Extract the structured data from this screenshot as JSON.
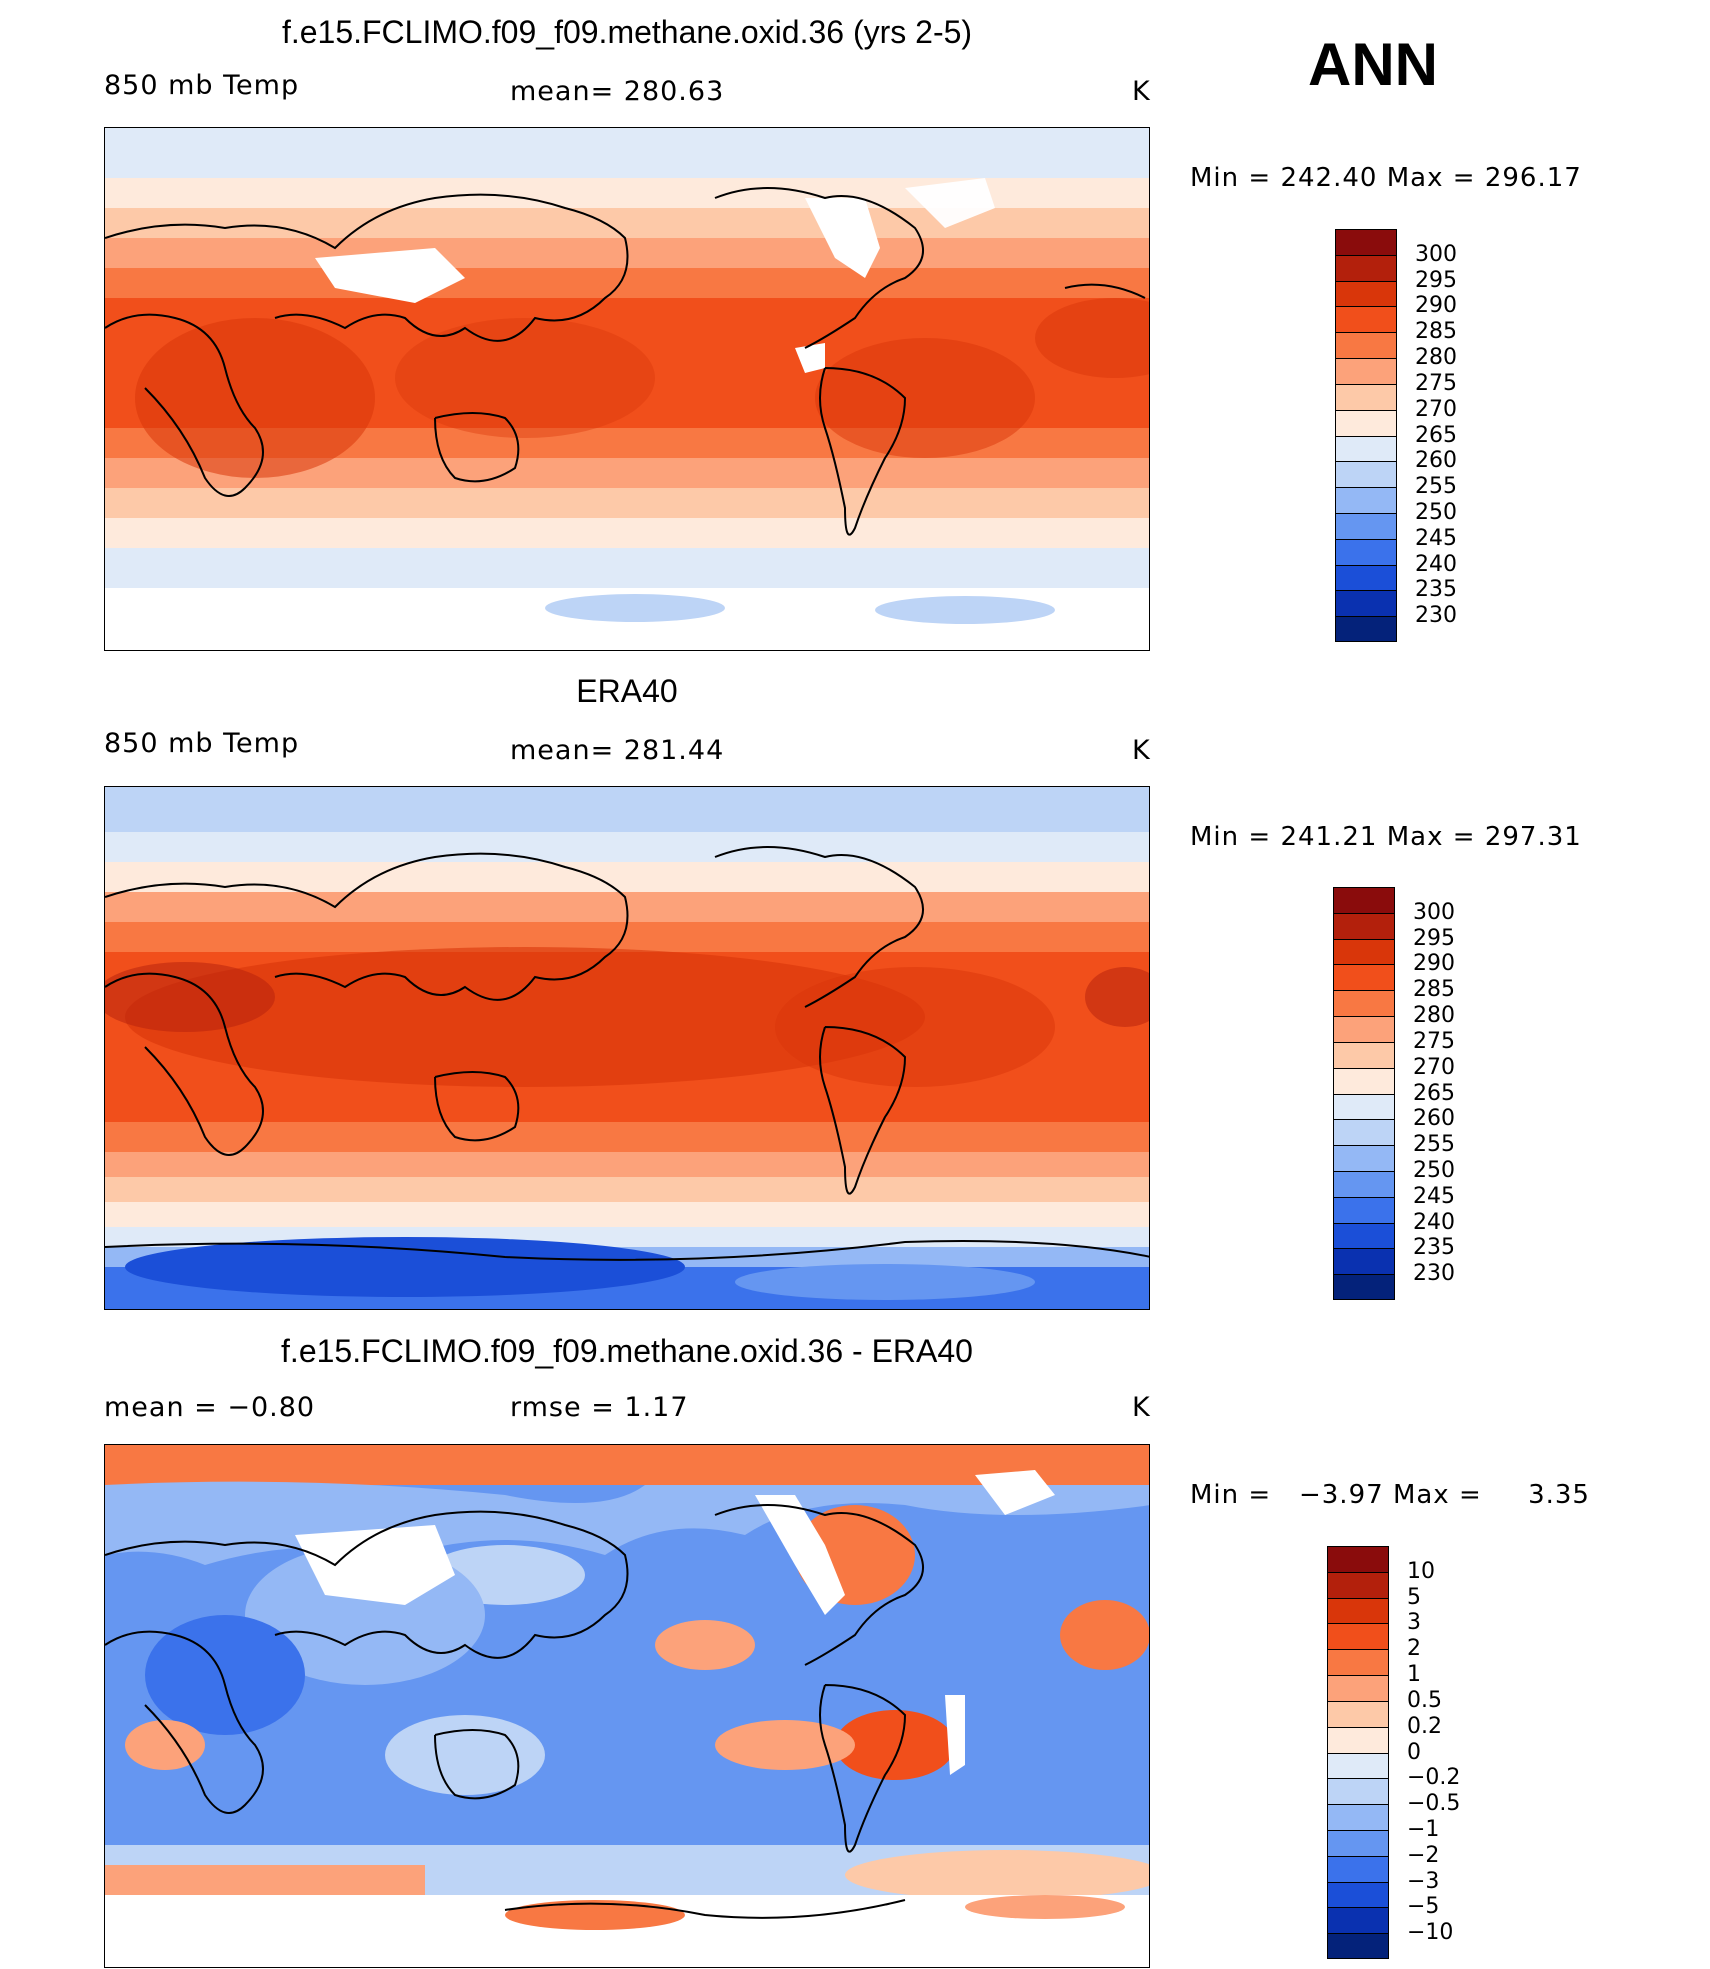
{
  "season": "ANN",
  "panels": [
    {
      "title": "f.e15.FCLIMO.f09_f09.methane.oxid.36 (yrs 2-5)",
      "left_label": "850 mb Temp",
      "center_label": "mean=  280.63",
      "units": "K",
      "min_label": "Min",
      "min_value": "242.40",
      "max_label": "Max",
      "max_value": "296.17",
      "colorbar_ticks": [
        "300",
        "295",
        "290",
        "285",
        "280",
        "275",
        "270",
        "265",
        "260",
        "255",
        "250",
        "245",
        "240",
        "235",
        "230"
      ],
      "colorbar_colors": [
        "#8a0c0c",
        "#b3200c",
        "#d9360a",
        "#f14f1b",
        "#f87843",
        "#fca27a",
        "#fdc9a8",
        "#feeadc",
        "#dfeaf8",
        "#bdd4f6",
        "#94b8f5",
        "#6596f1",
        "#3b72eb",
        "#1b4fd8",
        "#0a31b0",
        "#04227a"
      ]
    },
    {
      "title": "ERA40",
      "left_label": "850 mb Temp",
      "center_label": "mean=  281.44",
      "units": "K",
      "min_label": "Min",
      "min_value": "241.21",
      "max_label": "Max",
      "max_value": "297.31",
      "colorbar_ticks": [
        "300",
        "295",
        "290",
        "285",
        "280",
        "275",
        "270",
        "265",
        "260",
        "255",
        "250",
        "245",
        "240",
        "235",
        "230"
      ],
      "colorbar_colors": [
        "#8a0c0c",
        "#b3200c",
        "#d9360a",
        "#f14f1b",
        "#f87843",
        "#fca27a",
        "#fdc9a8",
        "#feeadc",
        "#dfeaf8",
        "#bdd4f6",
        "#94b8f5",
        "#6596f1",
        "#3b72eb",
        "#1b4fd8",
        "#0a31b0",
        "#04227a"
      ]
    },
    {
      "title": "f.e15.FCLIMO.f09_f09.methane.oxid.36 - ERA40",
      "left_label": "mean =   −0.80",
      "center_label": "rmse =    1.17",
      "units": "K",
      "min_label": "Min",
      "min_value": "−3.97",
      "max_label": "Max",
      "max_value": "3.35",
      "colorbar_ticks": [
        "10",
        "5",
        "3",
        "2",
        "1",
        "0.5",
        "0.2",
        "0",
        "−0.2",
        "−0.5",
        "−1",
        "−2",
        "−3",
        "−5",
        "−10"
      ],
      "colorbar_colors": [
        "#8a0c0c",
        "#b3200c",
        "#d9360a",
        "#f14f1b",
        "#f87843",
        "#fca27a",
        "#fdc9a8",
        "#feeadc",
        "#dfeaf8",
        "#bdd4f6",
        "#94b8f5",
        "#6596f1",
        "#3b72eb",
        "#1b4fd8",
        "#0a31b0",
        "#04227a"
      ]
    }
  ]
}
